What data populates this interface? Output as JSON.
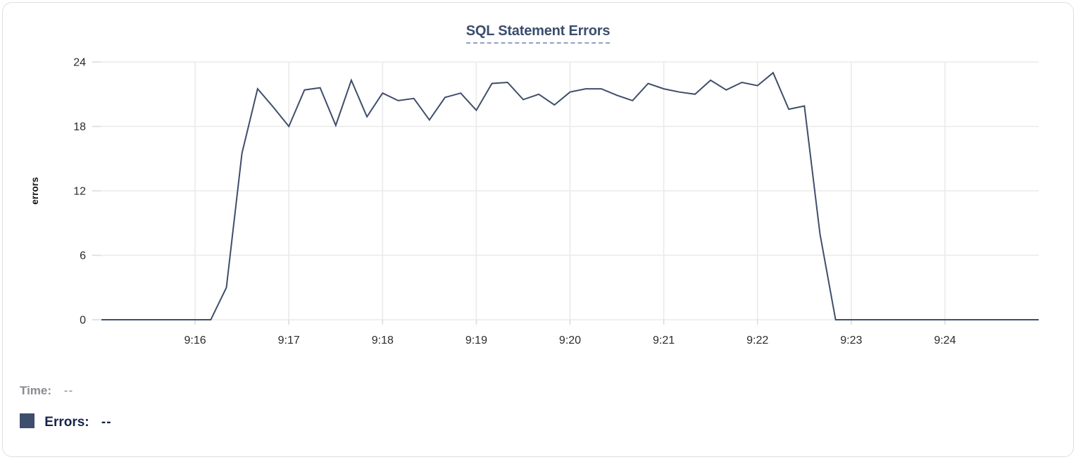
{
  "chart_data": {
    "type": "line",
    "title": "SQL Statement Errors",
    "ylabel": "errors",
    "ylim": [
      0,
      24
    ],
    "yticks": [
      0,
      6,
      12,
      18,
      24
    ],
    "xticks": [
      "9:16",
      "9:17",
      "9:18",
      "9:19",
      "9:20",
      "9:21",
      "9:22",
      "9:23",
      "9:24"
    ],
    "xtick_seconds": [
      60,
      120,
      180,
      240,
      300,
      360,
      420,
      480,
      540
    ],
    "x_range_seconds": [
      0,
      600
    ],
    "x_range_times": [
      "9:15:00",
      "9:25:00"
    ],
    "grid": true,
    "legend_position": "none",
    "line_color": "#3e4e6c",
    "grid_color": "#eaeaea",
    "tick_color": "#dcdcdc",
    "axis_text_color": "#2b2b2b",
    "series": [
      {
        "name": "Errors",
        "color": "#3e4e6c",
        "points": [
          [
            0,
            0
          ],
          [
            10,
            0
          ],
          [
            20,
            0
          ],
          [
            30,
            0
          ],
          [
            40,
            0
          ],
          [
            50,
            0
          ],
          [
            60,
            0
          ],
          [
            70,
            0
          ],
          [
            80,
            3
          ],
          [
            90,
            15.5
          ],
          [
            100,
            21.5
          ],
          [
            110,
            19.8
          ],
          [
            120,
            18
          ],
          [
            130,
            21.4
          ],
          [
            140,
            21.6
          ],
          [
            150,
            18.1
          ],
          [
            160,
            22.3
          ],
          [
            170,
            18.9
          ],
          [
            180,
            21.1
          ],
          [
            190,
            20.4
          ],
          [
            200,
            20.6
          ],
          [
            210,
            18.6
          ],
          [
            220,
            20.7
          ],
          [
            230,
            21.1
          ],
          [
            240,
            19.5
          ],
          [
            250,
            22.0
          ],
          [
            260,
            22.1
          ],
          [
            270,
            20.5
          ],
          [
            280,
            21.0
          ],
          [
            290,
            20.0
          ],
          [
            300,
            21.2
          ],
          [
            310,
            21.5
          ],
          [
            320,
            21.5
          ],
          [
            330,
            20.9
          ],
          [
            340,
            20.4
          ],
          [
            350,
            22.0
          ],
          [
            360,
            21.5
          ],
          [
            370,
            21.2
          ],
          [
            380,
            21.0
          ],
          [
            390,
            22.3
          ],
          [
            400,
            21.4
          ],
          [
            410,
            22.1
          ],
          [
            420,
            21.8
          ],
          [
            430,
            23.0
          ],
          [
            440,
            19.6
          ],
          [
            450,
            19.9
          ],
          [
            460,
            8
          ],
          [
            470,
            0
          ],
          [
            480,
            0
          ],
          [
            490,
            0
          ],
          [
            500,
            0
          ],
          [
            510,
            0
          ],
          [
            520,
            0
          ],
          [
            530,
            0
          ],
          [
            540,
            0
          ],
          [
            550,
            0
          ],
          [
            560,
            0
          ],
          [
            570,
            0
          ],
          [
            580,
            0
          ],
          [
            590,
            0
          ],
          [
            600,
            0
          ]
        ]
      }
    ]
  },
  "tooltip": {
    "time_label": "Time:",
    "time_value": "--",
    "errors_label": "Errors:",
    "errors_value": "--",
    "swatch_color": "#3e4e6c"
  }
}
